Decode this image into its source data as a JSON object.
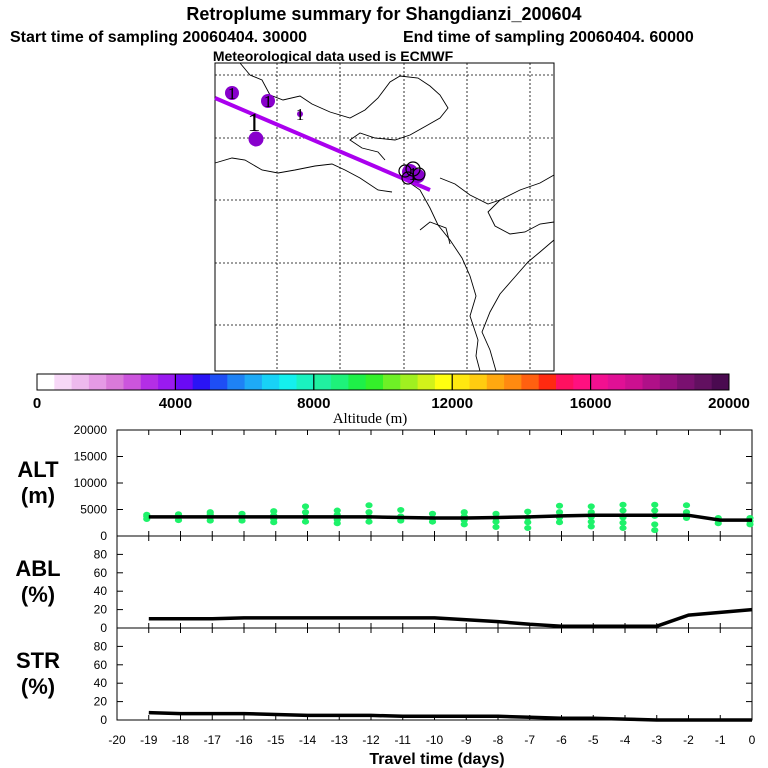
{
  "header": {
    "title": "Retroplume summary for Shangdianzi_200604",
    "start_label": "Start time of sampling 20060404. 30000",
    "end_label": "End time of sampling 20060404. 60000",
    "met_label": "Meteorological data used is ECMWF"
  },
  "colorbar": {
    "label": "Altitude (m)",
    "ticks": [
      "0",
      "4000",
      "8000",
      "12000",
      "16000",
      "20000"
    ],
    "colors": [
      "#ffffff",
      "#f7d8f7",
      "#eebaee",
      "#e59ae5",
      "#d97ad9",
      "#cc55dd",
      "#b42ee6",
      "#9a1af0",
      "#6a0af5",
      "#2a14f5",
      "#1e4ef5",
      "#1e82f5",
      "#1eaaf7",
      "#18d2f7",
      "#14f0ee",
      "#1af2c0",
      "#20f0a0",
      "#1ef27a",
      "#1ef048",
      "#34f02a",
      "#6ef026",
      "#a0f020",
      "#d2f21a",
      "#ffff10",
      "#ffe810",
      "#ffcc10",
      "#ffa810",
      "#ff8a10",
      "#ff6010",
      "#ff2a10",
      "#ff1060",
      "#ff1080",
      "#f21090",
      "#e01095",
      "#cc1090",
      "#b01088",
      "#94107e",
      "#7a1070",
      "#621060",
      "#4a0a50"
    ]
  },
  "map": {
    "icon_name": "retroplume-track-map",
    "track_color": "#aa00ee",
    "cluster_color": "#8800cc",
    "cluster_labels": [
      "1",
      "1",
      "1",
      "1",
      "1"
    ]
  },
  "chart_data": [
    {
      "type": "line",
      "id": "alt",
      "label_line1": "ALT",
      "label_line2": "(m)",
      "ylim": [
        0,
        20000
      ],
      "yticks": [
        "0",
        "5000",
        "10000",
        "15000",
        "20000"
      ],
      "ytick_values": [
        0,
        5000,
        10000,
        15000,
        20000
      ],
      "x": [
        -19,
        -18,
        -17,
        -16,
        -15,
        -14,
        -13,
        -12,
        -11,
        -10,
        -9,
        -8,
        -7,
        -6,
        -5,
        -4,
        -3,
        -2,
        -1,
        0
      ],
      "values": [
        3600,
        3600,
        3600,
        3600,
        3600,
        3600,
        3600,
        3600,
        3500,
        3400,
        3400,
        3500,
        3600,
        3800,
        3900,
        3900,
        3900,
        3900,
        3000,
        3000
      ],
      "scatter_color": "#1ef26a",
      "scatter": [
        [
          -19,
          3200
        ],
        [
          -19,
          3700
        ],
        [
          -19,
          4000
        ],
        [
          -18,
          3000
        ],
        [
          -18,
          3500
        ],
        [
          -18,
          4100
        ],
        [
          -17,
          2900
        ],
        [
          -17,
          3500
        ],
        [
          -17,
          4100
        ],
        [
          -17,
          4500
        ],
        [
          -16,
          2900
        ],
        [
          -16,
          3500
        ],
        [
          -16,
          4200
        ],
        [
          -15,
          2600
        ],
        [
          -15,
          3200
        ],
        [
          -15,
          3900
        ],
        [
          -15,
          4700
        ],
        [
          -14,
          2700
        ],
        [
          -14,
          3600
        ],
        [
          -14,
          4500
        ],
        [
          -14,
          5600
        ],
        [
          -13,
          2400
        ],
        [
          -13,
          3100
        ],
        [
          -13,
          4000
        ],
        [
          -13,
          4800
        ],
        [
          -12,
          2700
        ],
        [
          -12,
          3600
        ],
        [
          -12,
          4500
        ],
        [
          -12,
          5800
        ],
        [
          -11,
          2900
        ],
        [
          -11,
          3700
        ],
        [
          -11,
          4900
        ],
        [
          -10,
          2700
        ],
        [
          -10,
          3300
        ],
        [
          -10,
          4200
        ],
        [
          -9,
          2200
        ],
        [
          -9,
          3000
        ],
        [
          -9,
          3700
        ],
        [
          -9,
          4500
        ],
        [
          -8,
          1700
        ],
        [
          -8,
          2700
        ],
        [
          -8,
          3400
        ],
        [
          -8,
          4200
        ],
        [
          -7,
          1500
        ],
        [
          -7,
          2600
        ],
        [
          -7,
          3500
        ],
        [
          -7,
          4600
        ],
        [
          -6,
          2600
        ],
        [
          -6,
          3500
        ],
        [
          -6,
          4500
        ],
        [
          -6,
          5700
        ],
        [
          -5,
          1800
        ],
        [
          -5,
          2700
        ],
        [
          -5,
          3600
        ],
        [
          -5,
          4500
        ],
        [
          -5,
          5600
        ],
        [
          -4,
          1500
        ],
        [
          -4,
          2500
        ],
        [
          -4,
          3500
        ],
        [
          -4,
          4800
        ],
        [
          -4,
          5900
        ],
        [
          -3,
          1100
        ],
        [
          -3,
          2200
        ],
        [
          -3,
          3800
        ],
        [
          -3,
          4800
        ],
        [
          -3,
          5900
        ],
        [
          -2,
          3400
        ],
        [
          -2,
          4500
        ],
        [
          -2,
          5800
        ],
        [
          -1,
          2400
        ],
        [
          -1,
          3000
        ],
        [
          -1,
          3400
        ],
        [
          0,
          2200
        ],
        [
          0,
          2800
        ],
        [
          0,
          3400
        ]
      ]
    },
    {
      "type": "line",
      "id": "abl",
      "label_line1": "ABL",
      "label_line2": "(%)",
      "ylim": [
        0,
        100
      ],
      "yticks": [
        "0",
        "20",
        "40",
        "60",
        "80"
      ],
      "ytick_values": [
        0,
        20,
        40,
        60,
        80
      ],
      "x": [
        -19,
        -18,
        -17,
        -16,
        -15,
        -14,
        -13,
        -12,
        -11,
        -10,
        -9,
        -8,
        -7,
        -6,
        -5,
        -4,
        -3,
        -2,
        -1,
        0
      ],
      "values": [
        10,
        10,
        10,
        11,
        11,
        11,
        11,
        11,
        11,
        11,
        9,
        7,
        4,
        2,
        2,
        2,
        2,
        14,
        17,
        20
      ]
    },
    {
      "type": "line",
      "id": "str",
      "label_line1": "STR",
      "label_line2": "(%)",
      "ylim": [
        0,
        100
      ],
      "yticks": [
        "0",
        "20",
        "40",
        "60",
        "80"
      ],
      "ytick_values": [
        0,
        20,
        40,
        60,
        80
      ],
      "x": [
        -19,
        -18,
        -17,
        -16,
        -15,
        -14,
        -13,
        -12,
        -11,
        -10,
        -9,
        -8,
        -7,
        -6,
        -5,
        -4,
        -3,
        -2,
        -1,
        0
      ],
      "values": [
        8,
        7,
        7,
        7,
        6,
        5,
        5,
        5,
        4,
        4,
        4,
        4,
        3,
        2,
        2,
        1,
        0,
        0,
        0,
        0
      ]
    }
  ],
  "xaxis": {
    "label": "Travel time (days)",
    "range": [
      -20,
      0
    ],
    "ticks": [
      "-20",
      "-19",
      "-18",
      "-17",
      "-16",
      "-15",
      "-14",
      "-13",
      "-12",
      "-11",
      "-10",
      "-9",
      "-8",
      "-7",
      "-6",
      "-5",
      "-4",
      "-3",
      "-2",
      "-1",
      "0"
    ],
    "tick_values": [
      -20,
      -19,
      -18,
      -17,
      -16,
      -15,
      -14,
      -13,
      -12,
      -11,
      -10,
      -9,
      -8,
      -7,
      -6,
      -5,
      -4,
      -3,
      -2,
      -1,
      0
    ]
  }
}
